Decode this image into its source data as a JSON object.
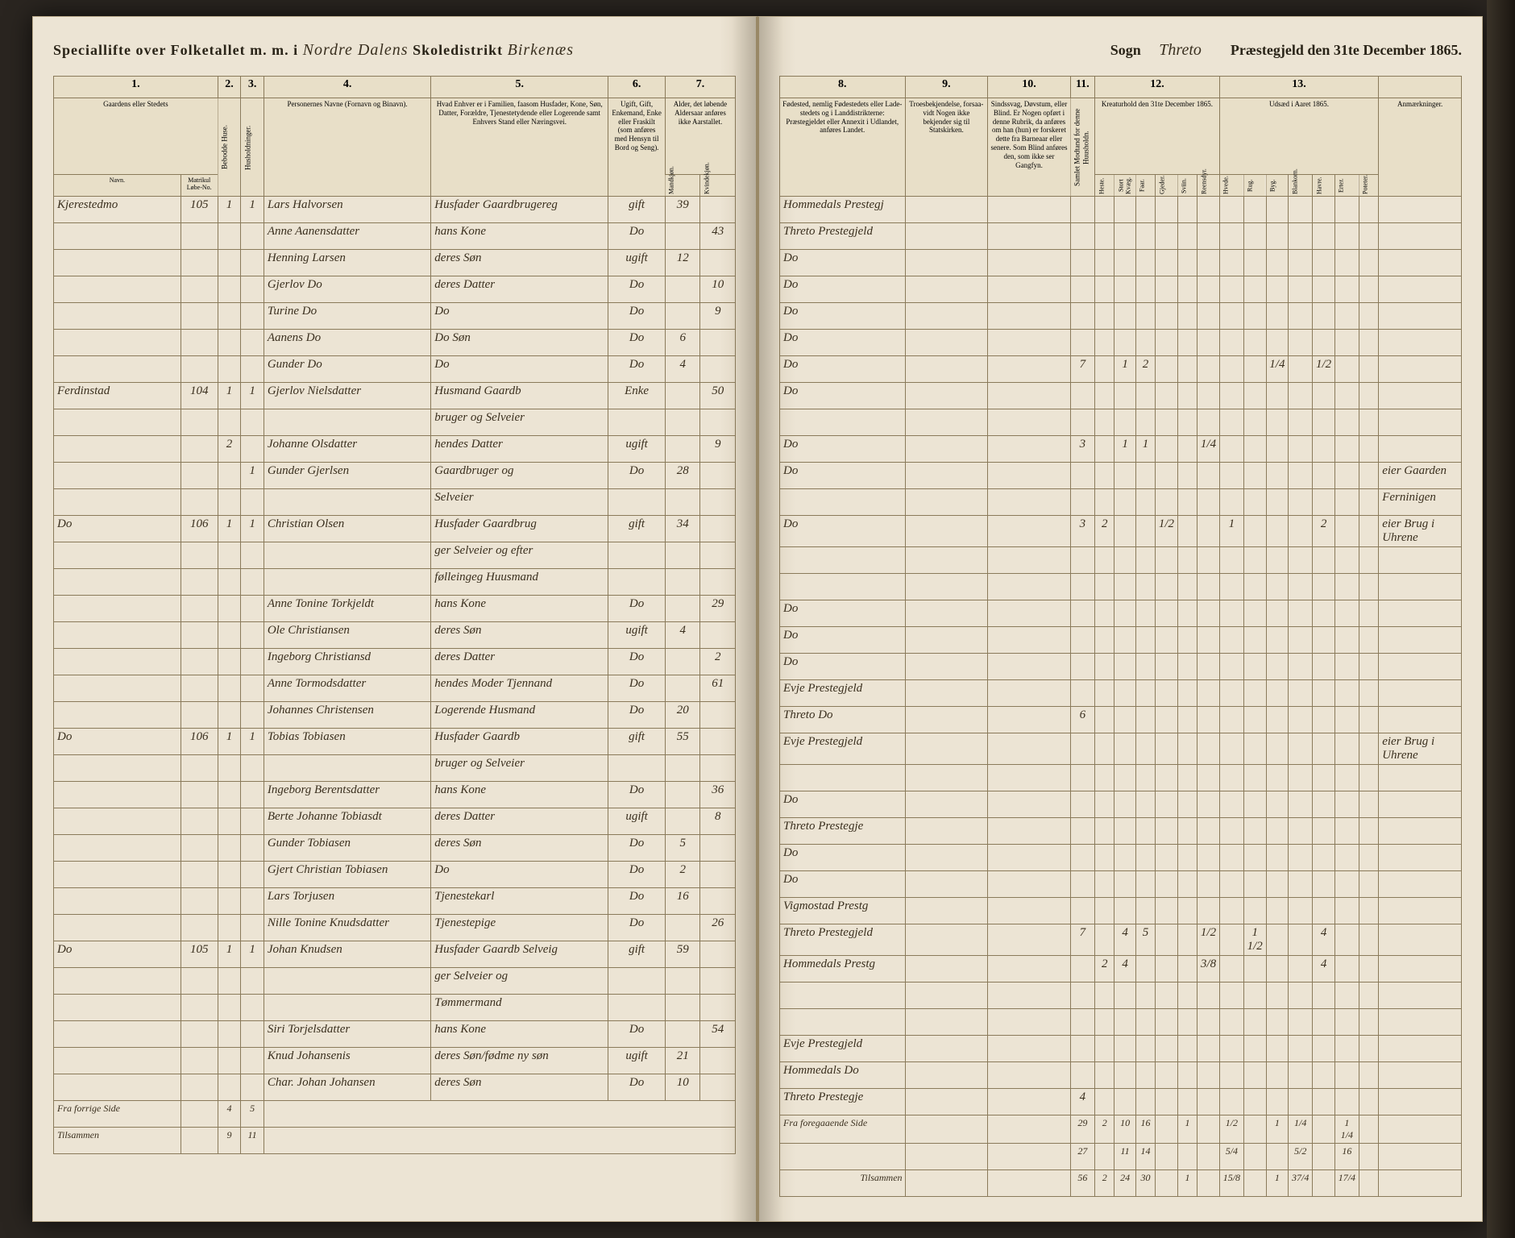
{
  "header": {
    "left_print": "Speciallifte over Folketallet m. m. i",
    "district_script": "Nordre Dalens",
    "school_print": "Skoledistrikt",
    "parish_script": "Birkenæs",
    "sogn_print": "Sogn",
    "parish2_script": "Threto",
    "right_print": "Præstegjeld den 31te December 1865."
  },
  "columns_left": {
    "c1": "1.",
    "c2": "2.",
    "c3": "3.",
    "c4": "4.",
    "c5": "5.",
    "c6": "6.",
    "c7": "7.",
    "h1": "Gaardens eller Stedets",
    "h1a": "Navn.",
    "h1b": "Matrikul Løbe-No.",
    "h2": "Bebodde Huse.",
    "h3": "Husholdninger.",
    "h4": "Personernes Navne (Fornavn og Binavn).",
    "h5": "Hvad Enhver er i Familien, faasom Husfader, Kone, Søn, Datter, Forældre, Tjenestetydende eller Logerende samt Enhvers Stand eller Næringsvei.",
    "h6": "Ugift, Gift, Enkemand, Enke eller Fraskilt (som anføres med Hensyn til Bord og Seng).",
    "h7": "Alder, det løbende Aldersaar anføres ikke Aarstallet.",
    "h7a": "Mandkjøn.",
    "h7b": "Kvindekjøn."
  },
  "columns_right": {
    "c8": "8.",
    "c9": "9.",
    "c10": "10.",
    "c11": "11.",
    "c12": "12.",
    "c13": "13.",
    "h8": "Fødested, nemlig Fødestedets eller Lade-stedets og i Landdistrikterne: Præstegjeldet eller Annexit i Udlandet, anføres Landet.",
    "h9": "Troesbekjendelse, forsaa-vidt Nogen ikke bekjender sig til Statskirken.",
    "h10": "Sindssvag, Døvstum, eller Blind. Er Nogen opført i denne Rubrik, da anføres om han (hun) er forskeret dette fra Barneaar eller senere. Som Blind anføres den, som ikke ser Gangfyn.",
    "h11a": "Samlet Modtand for denne Huusholdn.",
    "h12": "Kreaturhold den 31te December 1865.",
    "h12a": "Heste.",
    "h12b": "Stort Kvæg.",
    "h12c": "Faar.",
    "h12d": "Gjeder.",
    "h12e": "Sviin.",
    "h12f": "Reensdyr.",
    "h13": "Udsæd i Aaret 1865.",
    "h13a": "Hvede.",
    "h13b": "Rug.",
    "h13c": "Byg.",
    "h13d": "Blankorn.",
    "h13e": "Havre.",
    "h13f": "Erter.",
    "h13g": "Poteter.",
    "h14": "Anmærkninger."
  },
  "rows": [
    {
      "place": "Kjerestedmo",
      "matr": "105",
      "hus": "1",
      "hh": "1",
      "name": "Lars Halvorsen",
      "status": "Husfader Gaardbrugereg",
      "marital": "gift",
      "ageM": "39",
      "ageF": "",
      "birth": "Hommedals Prestegj",
      "note": ""
    },
    {
      "place": "",
      "matr": "",
      "hus": "",
      "hh": "",
      "name": "Anne Aanensdatter",
      "status": "hans Kone",
      "marital": "Do",
      "ageM": "",
      "ageF": "43",
      "birth": "Threto Prestegjeld",
      "note": ""
    },
    {
      "place": "",
      "matr": "",
      "hus": "",
      "hh": "",
      "name": "Henning Larsen",
      "status": "deres Søn",
      "marital": "ugift",
      "ageM": "12",
      "ageF": "",
      "birth": "Do",
      "note": ""
    },
    {
      "place": "",
      "matr": "",
      "hus": "",
      "hh": "",
      "name": "Gjerlov Do",
      "status": "deres Datter",
      "marital": "Do",
      "ageM": "",
      "ageF": "10",
      "birth": "Do",
      "note": ""
    },
    {
      "place": "",
      "matr": "",
      "hus": "",
      "hh": "",
      "name": "Turine Do",
      "status": "Do",
      "marital": "Do",
      "ageM": "",
      "ageF": "9",
      "birth": "Do",
      "note": ""
    },
    {
      "place": "",
      "matr": "",
      "hus": "",
      "hh": "",
      "name": "Aanens Do",
      "status": "Do Søn",
      "marital": "Do",
      "ageM": "6",
      "ageF": "",
      "birth": "Do",
      "note": ""
    },
    {
      "place": "",
      "matr": "",
      "hus": "",
      "hh": "",
      "name": "Gunder Do",
      "status": "Do",
      "marital": "Do",
      "ageM": "4",
      "ageF": "",
      "birth": "Do",
      "kreatur": [
        "7",
        "",
        "1",
        "2",
        "",
        "",
        "",
        "",
        "",
        "1/4",
        "",
        "1/2"
      ],
      "note": ""
    },
    {
      "place": "Ferdinstad",
      "matr": "104",
      "hus": "1",
      "hh": "1",
      "name": "Gjerlov Nielsdatter",
      "status": "Husmand Gaardb",
      "marital": "Enke",
      "ageM": "",
      "ageF": "50",
      "birth": "Do",
      "note": ""
    },
    {
      "place": "",
      "matr": "",
      "hus": "",
      "hh": "",
      "name": "",
      "status": "bruger og Selveier",
      "marital": "",
      "ageM": "",
      "ageF": "",
      "birth": "",
      "note": ""
    },
    {
      "place": "",
      "matr": "",
      "hus": "2",
      "hh": "",
      "name": "Johanne Olsdatter",
      "status": "hendes Datter",
      "marital": "ugift",
      "ageM": "",
      "ageF": "9",
      "birth": "Do",
      "kreatur": [
        "3",
        "",
        "1",
        "1",
        "",
        "",
        "1/4",
        "",
        "",
        "",
        "",
        ""
      ],
      "note": ""
    },
    {
      "place": "",
      "matr": "",
      "hus": "",
      "hh": "1",
      "name": "Gunder Gjerlsen",
      "status": "Gaardbruger og",
      "marital": "Do",
      "ageM": "28",
      "ageF": "",
      "birth": "Do",
      "note": "eier Gaarden"
    },
    {
      "place": "",
      "matr": "",
      "hus": "",
      "hh": "",
      "name": "",
      "status": "Selveier",
      "marital": "",
      "ageM": "",
      "ageF": "",
      "birth": "",
      "note": "Ferninigen"
    },
    {
      "place": "Do",
      "matr": "106",
      "hus": "1",
      "hh": "1",
      "name": "Christian Olsen",
      "status": "Husfader Gaardbrug",
      "marital": "gift",
      "ageM": "34",
      "ageF": "",
      "birth": "Do",
      "kreatur": [
        "3",
        "2",
        "",
        "",
        "1/2",
        "",
        "",
        "1",
        "",
        "",
        "",
        "2"
      ],
      "note": "eier Brug i Uhrene"
    },
    {
      "place": "",
      "matr": "",
      "hus": "",
      "hh": "",
      "name": "",
      "status": "ger Selveier og efter",
      "marital": "",
      "ageM": "",
      "ageF": "",
      "birth": "",
      "note": ""
    },
    {
      "place": "",
      "matr": "",
      "hus": "",
      "hh": "",
      "name": "",
      "status": "følleingeg Huusmand",
      "marital": "",
      "ageM": "",
      "ageF": "",
      "birth": "",
      "note": ""
    },
    {
      "place": "",
      "matr": "",
      "hus": "",
      "hh": "",
      "name": "Anne Tonine Torkjeldt",
      "status": "hans Kone",
      "marital": "Do",
      "ageM": "",
      "ageF": "29",
      "birth": "Do",
      "note": ""
    },
    {
      "place": "",
      "matr": "",
      "hus": "",
      "hh": "",
      "name": "Ole Christiansen",
      "status": "deres Søn",
      "marital": "ugift",
      "ageM": "4",
      "ageF": "",
      "birth": "Do",
      "note": ""
    },
    {
      "place": "",
      "matr": "",
      "hus": "",
      "hh": "",
      "name": "Ingeborg Christiansd",
      "status": "deres Datter",
      "marital": "Do",
      "ageM": "",
      "ageF": "2",
      "birth": "Do",
      "note": ""
    },
    {
      "place": "",
      "matr": "",
      "hus": "",
      "hh": "",
      "name": "Anne Tormodsdatter",
      "status": "hendes Moder Tjennand",
      "marital": "Do",
      "ageM": "",
      "ageF": "61",
      "birth": "Evje Prestegjeld",
      "note": ""
    },
    {
      "place": "",
      "matr": "",
      "hus": "",
      "hh": "",
      "name": "Johannes Christensen",
      "status": "Logerende Husmand",
      "marital": "Do",
      "ageM": "20",
      "ageF": "",
      "birth": "Threto Do",
      "kreatur": [
        "6",
        "",
        "",
        "",
        "",
        "",
        "",
        "",
        "",
        "",
        "",
        ""
      ],
      "note": ""
    },
    {
      "place": "Do",
      "matr": "106",
      "hus": "1",
      "hh": "1",
      "name": "Tobias Tobiasen",
      "status": "Husfader Gaardb",
      "marital": "gift",
      "ageM": "55",
      "ageF": "",
      "birth": "Evje Prestegjeld",
      "note": "eier Brug i Uhrene"
    },
    {
      "place": "",
      "matr": "",
      "hus": "",
      "hh": "",
      "name": "",
      "status": "bruger og Selveier",
      "marital": "",
      "ageM": "",
      "ageF": "",
      "birth": "",
      "note": ""
    },
    {
      "place": "",
      "matr": "",
      "hus": "",
      "hh": "",
      "name": "Ingeborg Berentsdatter",
      "status": "hans Kone",
      "marital": "Do",
      "ageM": "",
      "ageF": "36",
      "birth": "Do",
      "note": ""
    },
    {
      "place": "",
      "matr": "",
      "hus": "",
      "hh": "",
      "name": "Berte Johanne Tobiasdt",
      "status": "deres Datter",
      "marital": "ugift",
      "ageM": "",
      "ageF": "8",
      "birth": "Threto Prestegje",
      "note": ""
    },
    {
      "place": "",
      "matr": "",
      "hus": "",
      "hh": "",
      "name": "Gunder Tobiasen",
      "status": "deres Søn",
      "marital": "Do",
      "ageM": "5",
      "ageF": "",
      "birth": "Do",
      "note": ""
    },
    {
      "place": "",
      "matr": "",
      "hus": "",
      "hh": "",
      "name": "Gjert Christian Tobiasen",
      "status": "Do",
      "marital": "Do",
      "ageM": "2",
      "ageF": "",
      "birth": "Do",
      "note": ""
    },
    {
      "place": "",
      "matr": "",
      "hus": "",
      "hh": "",
      "name": "Lars Torjusen",
      "status": "Tjenestekarl",
      "marital": "Do",
      "ageM": "16",
      "ageF": "",
      "birth": "Vigmostad Prestg",
      "note": ""
    },
    {
      "place": "",
      "matr": "",
      "hus": "",
      "hh": "",
      "name": "Nille Tonine Knudsdatter",
      "status": "Tjenestepige",
      "marital": "Do",
      "ageM": "",
      "ageF": "26",
      "birth": "Threto Prestegjeld",
      "kreatur": [
        "7",
        "",
        "4",
        "5",
        "",
        "",
        "1/2",
        "",
        "1 1/2",
        "",
        "",
        "4"
      ],
      "note": ""
    },
    {
      "place": "Do",
      "matr": "105",
      "hus": "1",
      "hh": "1",
      "name": "Johan Knudsen",
      "status": "Husfader Gaardb Selveig",
      "marital": "gift",
      "ageM": "59",
      "ageF": "",
      "birth": "Hommedals Prestg",
      "kreatur": [
        "",
        "2",
        "4",
        "",
        "",
        "",
        "3/8",
        "",
        "",
        "",
        "",
        "4"
      ],
      "note": ""
    },
    {
      "place": "",
      "matr": "",
      "hus": "",
      "hh": "",
      "name": "",
      "status": "ger Selveier og",
      "marital": "",
      "ageM": "",
      "ageF": "",
      "birth": "",
      "note": ""
    },
    {
      "place": "",
      "matr": "",
      "hus": "",
      "hh": "",
      "name": "",
      "status": "Tømmermand",
      "marital": "",
      "ageM": "",
      "ageF": "",
      "birth": "",
      "note": ""
    },
    {
      "place": "",
      "matr": "",
      "hus": "",
      "hh": "",
      "name": "Siri Torjelsdatter",
      "status": "hans Kone",
      "marital": "Do",
      "ageM": "",
      "ageF": "54",
      "birth": "Evje Prestegjeld",
      "note": ""
    },
    {
      "place": "",
      "matr": "",
      "hus": "",
      "hh": "",
      "name": "Knud Johansenis",
      "status": "deres Søn/fødme ny søn",
      "marital": "ugift",
      "ageM": "21",
      "ageF": "",
      "birth": "Hommedals Do",
      "note": ""
    },
    {
      "place": "",
      "matr": "",
      "hus": "",
      "hh": "",
      "name": "Char. Johan Johansen",
      "status": "deres Søn",
      "marital": "Do",
      "ageM": "10",
      "ageF": "",
      "birth": "Threto Prestegje",
      "kreatur": [
        "4",
        "",
        "",
        "",
        "",
        "",
        "",
        "",
        "",
        "",
        "",
        ""
      ],
      "note": ""
    }
  ],
  "totals": {
    "label_left": "Fra forrige Side",
    "label_right1": "Fra foregaaende Side",
    "label_right2": "Tilsammen",
    "left_prev": [
      "4",
      "5"
    ],
    "left_sum1": [
      "9",
      "11"
    ],
    "right_prev": [
      "29",
      "2",
      "10",
      "16",
      "",
      "1",
      "",
      "",
      "",
      "1/2",
      "",
      "1",
      "1/4",
      "",
      "1 1/4"
    ],
    "right_page": [
      "27",
      "",
      "11",
      "14",
      "",
      "",
      "",
      "",
      "",
      "5/4",
      "",
      "",
      "5/2",
      "",
      "16"
    ],
    "right_sum": [
      "56",
      "2",
      "24",
      "30",
      "",
      "1",
      "",
      "",
      "",
      "15/8",
      "",
      "1",
      "37/4",
      "",
      "17/4"
    ]
  }
}
